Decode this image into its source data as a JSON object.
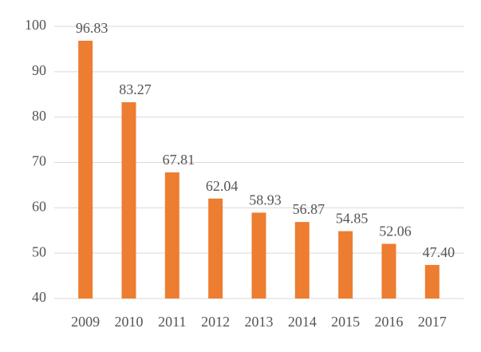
{
  "chart_data": {
    "type": "bar",
    "categories": [
      "2009",
      "2010",
      "2011",
      "2012",
      "2013",
      "2014",
      "2015",
      "2016",
      "2017"
    ],
    "values": [
      96.83,
      83.27,
      67.81,
      62.04,
      58.93,
      56.87,
      54.85,
      52.06,
      47.4
    ],
    "value_labels": [
      "96.83",
      "83.27",
      "67.81",
      "62.04",
      "58.93",
      "56.87",
      "54.85",
      "52.06",
      "47.40"
    ],
    "color": "#ed7d31",
    "ylim": [
      40,
      100
    ],
    "yticks": [
      40,
      50,
      60,
      70,
      80,
      90,
      100
    ],
    "grid": true
  }
}
